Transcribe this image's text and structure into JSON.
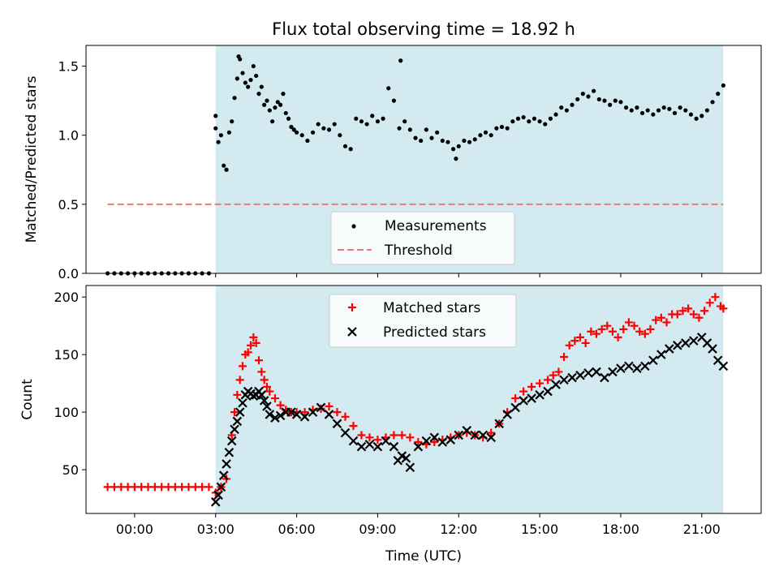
{
  "chart_data": [
    {
      "type": "scatter",
      "title": "Flux total observing time = 18.92 h",
      "ylabel": "Matched/Predicted stars",
      "xlabel": "",
      "x_unit": "hours (UTC)",
      "xlim": [
        -1.8,
        23.2
      ],
      "ylim": [
        0.0,
        1.65
      ],
      "yticks": [
        {
          "value": 0.0,
          "label": "0.0"
        },
        {
          "value": 0.5,
          "label": "0.5"
        },
        {
          "value": 1.0,
          "label": "1.0"
        },
        {
          "value": 1.5,
          "label": "1.5"
        }
      ],
      "observing_window": {
        "start": 3.0,
        "end": 21.8,
        "color": "#d4eaf1"
      },
      "threshold": {
        "name": "Threshold",
        "value": 0.5,
        "x_start": -1.0,
        "x_end": 21.8,
        "color": "#f07878"
      },
      "legend": {
        "placement": "lower-center",
        "entries": [
          "Measurements",
          "Threshold"
        ]
      },
      "series": [
        {
          "name": "Measurements",
          "marker": "dot",
          "color": "#000000",
          "x": [
            -1.0,
            -0.75,
            -0.5,
            -0.25,
            0.0,
            0.25,
            0.5,
            0.75,
            1.0,
            1.25,
            1.5,
            1.75,
            2.0,
            2.25,
            2.5,
            2.75,
            3.0,
            3.0,
            3.1,
            3.2,
            3.3,
            3.4,
            3.5,
            3.6,
            3.7,
            3.8,
            3.85,
            3.9,
            4.0,
            4.1,
            4.2,
            4.3,
            4.4,
            4.5,
            4.6,
            4.7,
            4.8,
            4.9,
            5.0,
            5.1,
            5.2,
            5.3,
            5.4,
            5.5,
            5.6,
            5.7,
            5.8,
            5.9,
            6.0,
            6.2,
            6.4,
            6.6,
            6.8,
            7.0,
            7.2,
            7.4,
            7.6,
            7.8,
            8.0,
            8.2,
            8.4,
            8.6,
            8.8,
            9.0,
            9.2,
            9.4,
            9.6,
            9.8,
            9.85,
            10.0,
            10.2,
            10.4,
            10.6,
            10.8,
            11.0,
            11.2,
            11.4,
            11.6,
            11.8,
            11.9,
            12.0,
            12.2,
            12.4,
            12.6,
            12.8,
            13.0,
            13.2,
            13.4,
            13.6,
            13.8,
            14.0,
            14.2,
            14.4,
            14.6,
            14.8,
            15.0,
            15.2,
            15.4,
            15.6,
            15.8,
            16.0,
            16.2,
            16.4,
            16.6,
            16.8,
            17.0,
            17.2,
            17.4,
            17.6,
            17.8,
            18.0,
            18.2,
            18.4,
            18.6,
            18.8,
            19.0,
            19.2,
            19.4,
            19.6,
            19.8,
            20.0,
            20.2,
            20.4,
            20.6,
            20.8,
            21.0,
            21.2,
            21.4,
            21.6,
            21.8
          ],
          "y": [
            0.0,
            0.0,
            0.0,
            0.0,
            0.0,
            0.0,
            0.0,
            0.0,
            0.0,
            0.0,
            0.0,
            0.0,
            0.0,
            0.0,
            0.0,
            0.0,
            1.14,
            1.05,
            0.95,
            1.0,
            0.78,
            0.75,
            1.02,
            1.1,
            1.27,
            1.41,
            1.57,
            1.55,
            1.45,
            1.38,
            1.35,
            1.4,
            1.5,
            1.43,
            1.3,
            1.35,
            1.22,
            1.25,
            1.18,
            1.1,
            1.2,
            1.24,
            1.22,
            1.3,
            1.16,
            1.12,
            1.06,
            1.04,
            1.02,
            1.0,
            0.96,
            1.02,
            1.08,
            1.05,
            1.04,
            1.08,
            1.0,
            0.92,
            0.9,
            1.12,
            1.1,
            1.08,
            1.14,
            1.1,
            1.12,
            1.34,
            1.25,
            1.05,
            1.54,
            1.1,
            1.04,
            0.98,
            0.96,
            1.04,
            0.98,
            1.02,
            0.96,
            0.95,
            0.9,
            0.83,
            0.92,
            0.96,
            0.95,
            0.97,
            1.0,
            1.02,
            1.0,
            1.05,
            1.06,
            1.05,
            1.1,
            1.12,
            1.13,
            1.1,
            1.12,
            1.1,
            1.08,
            1.12,
            1.15,
            1.2,
            1.18,
            1.22,
            1.26,
            1.3,
            1.28,
            1.32,
            1.26,
            1.25,
            1.22,
            1.25,
            1.24,
            1.2,
            1.18,
            1.2,
            1.16,
            1.18,
            1.15,
            1.18,
            1.2,
            1.19,
            1.16,
            1.2,
            1.18,
            1.15,
            1.12,
            1.14,
            1.18,
            1.24,
            1.3,
            1.36
          ]
        }
      ]
    },
    {
      "type": "scatter",
      "title": "",
      "ylabel": "Count",
      "xlabel": "Time (UTC)",
      "x_unit": "hours (UTC)",
      "xlim": [
        -1.8,
        23.2
      ],
      "ylim": [
        12,
        210
      ],
      "xticks": [
        {
          "value": 0,
          "label": "00:00"
        },
        {
          "value": 3,
          "label": "03:00"
        },
        {
          "value": 6,
          "label": "06:00"
        },
        {
          "value": 9,
          "label": "09:00"
        },
        {
          "value": 12,
          "label": "12:00"
        },
        {
          "value": 15,
          "label": "15:00"
        },
        {
          "value": 18,
          "label": "18:00"
        },
        {
          "value": 21,
          "label": "21:00"
        }
      ],
      "yticks": [
        {
          "value": 50,
          "label": "50"
        },
        {
          "value": 100,
          "label": "100"
        },
        {
          "value": 150,
          "label": "150"
        },
        {
          "value": 200,
          "label": "200"
        }
      ],
      "observing_window": {
        "start": 3.0,
        "end": 21.8,
        "color": "#d4eaf1"
      },
      "legend": {
        "placement": "top-center",
        "entries": [
          "Matched stars",
          "Predicted stars"
        ]
      },
      "series": [
        {
          "name": "Matched stars",
          "marker": "plus",
          "color": "#ff0000",
          "x": [
            -1.0,
            -0.75,
            -0.5,
            -0.25,
            0.0,
            0.25,
            0.5,
            0.75,
            1.0,
            1.25,
            1.5,
            1.75,
            2.0,
            2.25,
            2.5,
            2.75,
            3.0,
            3.2,
            3.4,
            3.6,
            3.7,
            3.8,
            3.9,
            4.0,
            4.1,
            4.2,
            4.3,
            4.4,
            4.5,
            4.6,
            4.7,
            4.8,
            4.9,
            5.0,
            5.2,
            5.4,
            5.6,
            5.8,
            6.0,
            6.3,
            6.6,
            6.9,
            7.2,
            7.5,
            7.8,
            8.1,
            8.4,
            8.7,
            9.0,
            9.3,
            9.6,
            9.9,
            10.2,
            10.5,
            10.8,
            11.1,
            11.4,
            11.7,
            12.0,
            12.3,
            12.6,
            12.9,
            13.2,
            13.5,
            13.8,
            14.1,
            14.4,
            14.7,
            15.0,
            15.3,
            15.5,
            15.7,
            15.9,
            16.1,
            16.3,
            16.5,
            16.7,
            16.9,
            17.1,
            17.3,
            17.5,
            17.7,
            17.9,
            18.1,
            18.3,
            18.5,
            18.7,
            18.9,
            19.1,
            19.3,
            19.5,
            19.7,
            19.9,
            20.1,
            20.3,
            20.5,
            20.7,
            20.9,
            21.1,
            21.3,
            21.5,
            21.7,
            21.8
          ],
          "y": [
            35,
            35,
            35,
            35,
            35,
            35,
            35,
            35,
            35,
            35,
            35,
            35,
            35,
            35,
            35,
            35,
            30,
            35,
            42,
            80,
            100,
            115,
            128,
            140,
            150,
            152,
            158,
            165,
            160,
            145,
            135,
            128,
            122,
            118,
            112,
            106,
            102,
            100,
            100,
            100,
            102,
            103,
            105,
            100,
            96,
            88,
            80,
            78,
            76,
            78,
            80,
            80,
            78,
            74,
            72,
            74,
            76,
            78,
            80,
            82,
            80,
            78,
            82,
            90,
            100,
            112,
            118,
            122,
            125,
            128,
            132,
            135,
            148,
            158,
            162,
            165,
            160,
            170,
            168,
            172,
            175,
            170,
            165,
            172,
            178,
            175,
            170,
            168,
            172,
            180,
            182,
            178,
            185,
            185,
            188,
            190,
            185,
            182,
            188,
            195,
            200,
            192,
            190
          ]
        },
        {
          "name": "Predicted stars",
          "marker": "x",
          "color": "#000000",
          "x": [
            3.0,
            3.1,
            3.2,
            3.3,
            3.4,
            3.5,
            3.6,
            3.7,
            3.8,
            3.9,
            4.0,
            4.1,
            4.2,
            4.3,
            4.4,
            4.5,
            4.6,
            4.7,
            4.8,
            4.9,
            5.0,
            5.2,
            5.4,
            5.6,
            5.8,
            6.0,
            6.3,
            6.6,
            6.9,
            7.2,
            7.5,
            7.8,
            8.1,
            8.4,
            8.7,
            9.0,
            9.3,
            9.6,
            9.75,
            9.9,
            10.05,
            10.2,
            10.5,
            10.8,
            11.1,
            11.4,
            11.7,
            12.0,
            12.3,
            12.6,
            12.9,
            13.2,
            13.5,
            13.8,
            14.1,
            14.4,
            14.7,
            15.0,
            15.3,
            15.6,
            15.9,
            16.2,
            16.5,
            16.8,
            17.1,
            17.4,
            17.7,
            18.0,
            18.3,
            18.6,
            18.9,
            19.2,
            19.5,
            19.8,
            20.1,
            20.4,
            20.7,
            21.0,
            21.2,
            21.4,
            21.6,
            21.8
          ],
          "y": [
            22,
            28,
            35,
            45,
            55,
            65,
            75,
            85,
            92,
            100,
            108,
            115,
            118,
            116,
            114,
            115,
            118,
            115,
            110,
            105,
            98,
            95,
            97,
            100,
            100,
            98,
            96,
            100,
            104,
            98,
            90,
            82,
            75,
            70,
            72,
            70,
            75,
            70,
            58,
            62,
            60,
            52,
            70,
            75,
            78,
            74,
            76,
            80,
            84,
            80,
            80,
            78,
            90,
            98,
            104,
            110,
            112,
            115,
            118,
            124,
            128,
            130,
            132,
            134,
            135,
            130,
            135,
            138,
            140,
            138,
            140,
            145,
            150,
            155,
            158,
            160,
            162,
            165,
            160,
            155,
            145,
            140
          ]
        }
      ]
    }
  ]
}
